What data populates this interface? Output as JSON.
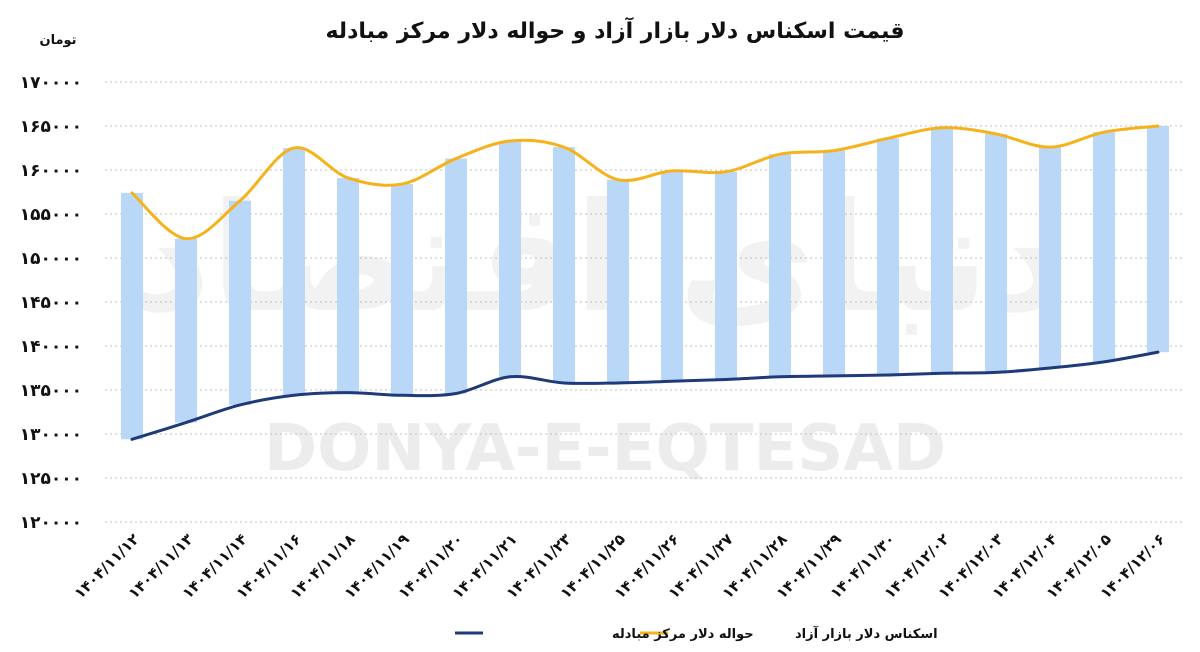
{
  "chart_data": {
    "type": "line",
    "title": "قیمت اسکناس دلار بازار آزاد و حواله دلار مرکز مبادله",
    "unit_label": "تومان",
    "ylim": [
      120000,
      170000
    ],
    "yticks": [
      120000,
      125000,
      130000,
      135000,
      140000,
      145000,
      150000,
      155000,
      160000,
      165000,
      170000
    ],
    "ytick_labels": [
      "۱۲۰۰۰۰",
      "۱۲۵۰۰۰",
      "۱۳۰۰۰۰",
      "۱۳۵۰۰۰",
      "۱۴۰۰۰۰",
      "۱۴۵۰۰۰",
      "۱۵۰۰۰۰",
      "۱۵۵۰۰۰",
      "۱۶۰۰۰۰",
      "۱۶۵۰۰۰",
      "۱۷۰۰۰۰"
    ],
    "categories": [
      "۱۴۰۴/۱۱/۱۲",
      "۱۴۰۴/۱۱/۱۳",
      "۱۴۰۴/۱۱/۱۴",
      "۱۴۰۴/۱۱/۱۶",
      "۱۴۰۴/۱۱/۱۸",
      "۱۴۰۴/۱۱/۱۹",
      "۱۴۰۴/۱۱/۲۰",
      "۱۴۰۴/۱۱/۲۱",
      "۱۴۰۴/۱۱/۲۳",
      "۱۴۰۴/۱۱/۲۵",
      "۱۴۰۴/۱۱/۲۶",
      "۱۴۰۴/۱۱/۲۷",
      "۱۴۰۴/۱۱/۲۸",
      "۱۴۰۴/۱۱/۲۹",
      "۱۴۰۴/۱۱/۳۰",
      "۱۴۰۴/۱۲/۰۲",
      "۱۴۰۴/۱۲/۰۳",
      "۱۴۰۴/۱۲/۰۴",
      "۱۴۰۴/۱۲/۰۵",
      "۱۴۰۴/۱۲/۰۶"
    ],
    "series": [
      {
        "name": "اسکناس دلار بازار آزاد",
        "color": "#F5B21B",
        "values": [
          157400,
          152200,
          156500,
          162500,
          159100,
          158400,
          161300,
          163300,
          162600,
          158900,
          159900,
          159800,
          161800,
          162200,
          163600,
          164800,
          164100,
          162600,
          164300,
          165000
        ]
      },
      {
        "name": "حواله دلار مرکز مبادله",
        "color": "#1F3A7A",
        "values": [
          129400,
          131300,
          133300,
          134400,
          134700,
          134400,
          134600,
          136500,
          135800,
          135800,
          136000,
          136200,
          136500,
          136600,
          136700,
          136900,
          137000,
          137500,
          138200,
          139300
        ]
      }
    ],
    "band_color": "#B9D8F7",
    "grid": true,
    "legend_position": "bottom"
  },
  "watermark": {
    "latin": "DONYA-E-EQTESAD",
    "persian": "دنیای اقتصاد"
  }
}
